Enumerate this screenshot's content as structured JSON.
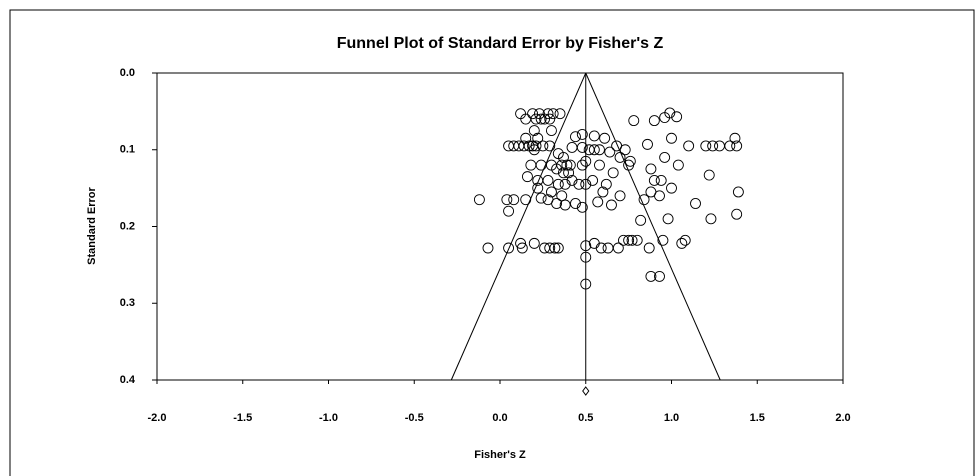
{
  "chart_data": {
    "type": "funnel-scatter",
    "title": "Funnel Plot of Standard Error by Fisher's Z",
    "x_label": "Fisher's Z",
    "y_label": "Standard Error",
    "xlim": [
      -2,
      2
    ],
    "ylim": [
      0,
      0.4
    ],
    "y_inverted": true,
    "xticks": [
      {
        "value": -2,
        "label": "-2.0"
      },
      -1.5,
      {
        "value": -1,
        "label": "-1.0"
      },
      -0.5,
      {
        "value": 0,
        "label": "0.0"
      },
      0.5,
      {
        "value": 1,
        "label": "1.0"
      },
      1.5,
      {
        "value": 2,
        "label": "2.0"
      }
    ],
    "yticks": [
      {
        "value": 0,
        "label": "0.0"
      },
      0.1,
      0.2,
      0.3,
      0.4
    ],
    "color": "#000000",
    "summary_effect": 0.5,
    "funnel_z": 1.96,
    "x": [
      0.12,
      0.15,
      0.19,
      0.21,
      0.23,
      0.26,
      0.28,
      0.31,
      0.35,
      0.24,
      0.29,
      0.99,
      1.03,
      0.96,
      0.9,
      0.78,
      0.2,
      0.3,
      0.22,
      0.15,
      0.05,
      0.08,
      0.11,
      0.14,
      0.17,
      0.19,
      0.21,
      0.25,
      0.29,
      0.2,
      0.44,
      0.48,
      0.55,
      0.61,
      0.68,
      1.0,
      1.37,
      1.1,
      1.2,
      1.24,
      1.28,
      1.34,
      1.38,
      0.86,
      0.73,
      0.42,
      0.48,
      0.52,
      0.55,
      0.58,
      0.64,
      0.7,
      0.76,
      0.96,
      0.34,
      0.37,
      0.24,
      0.18,
      0.3,
      0.36,
      0.39,
      0.41,
      0.33,
      0.37,
      0.4,
      0.48,
      0.5,
      0.58,
      0.66,
      0.75,
      0.88,
      1.22,
      1.04,
      0.16,
      0.22,
      0.28,
      0.34,
      0.38,
      0.42,
      0.46,
      0.5,
      0.54,
      0.62,
      0.9,
      0.94,
      0.88,
      0.93,
      1.0,
      1.39,
      0.22,
      0.3,
      0.36,
      0.6,
      0.7,
      0.84,
      -0.12,
      0.04,
      0.08,
      0.05,
      0.15,
      0.24,
      0.28,
      0.33,
      0.38,
      0.44,
      0.48,
      0.57,
      0.65,
      1.14,
      1.38,
      0.98,
      1.23,
      0.82,
      -0.07,
      0.05,
      0.12,
      0.13,
      0.2,
      0.26,
      0.29,
      0.32,
      0.34,
      0.5,
      0.55,
      0.59,
      0.63,
      0.69,
      0.72,
      0.75,
      0.77,
      0.8,
      0.87,
      0.95,
      1.06,
      1.08,
      0.5,
      0.88,
      0.93,
      0.5
    ],
    "values": [
      0.053,
      0.06,
      0.053,
      0.06,
      0.053,
      0.06,
      0.053,
      0.053,
      0.053,
      0.06,
      0.06,
      0.052,
      0.057,
      0.058,
      0.062,
      0.062,
      0.075,
      0.075,
      0.085,
      0.085,
      0.095,
      0.095,
      0.095,
      0.095,
      0.095,
      0.095,
      0.095,
      0.095,
      0.095,
      0.1,
      0.083,
      0.08,
      0.082,
      0.085,
      0.095,
      0.085,
      0.085,
      0.095,
      0.095,
      0.095,
      0.095,
      0.095,
      0.095,
      0.093,
      0.1,
      0.097,
      0.097,
      0.1,
      0.1,
      0.1,
      0.103,
      0.11,
      0.115,
      0.11,
      0.105,
      0.11,
      0.12,
      0.12,
      0.12,
      0.12,
      0.12,
      0.12,
      0.125,
      0.13,
      0.13,
      0.12,
      0.115,
      0.12,
      0.13,
      0.12,
      0.125,
      0.133,
      0.12,
      0.135,
      0.14,
      0.14,
      0.145,
      0.145,
      0.14,
      0.145,
      0.145,
      0.14,
      0.145,
      0.14,
      0.14,
      0.155,
      0.16,
      0.15,
      0.155,
      0.15,
      0.155,
      0.16,
      0.155,
      0.16,
      0.165,
      0.165,
      0.165,
      0.165,
      0.18,
      0.165,
      0.163,
      0.165,
      0.17,
      0.172,
      0.17,
      0.175,
      0.168,
      0.172,
      0.17,
      0.184,
      0.19,
      0.19,
      0.192,
      0.228,
      0.228,
      0.222,
      0.228,
      0.222,
      0.228,
      0.228,
      0.228,
      0.228,
      0.225,
      0.222,
      0.228,
      0.228,
      0.228,
      0.218,
      0.218,
      0.218,
      0.218,
      0.228,
      0.218,
      0.222,
      0.218,
      0.24,
      0.265,
      0.265,
      0.275
    ]
  }
}
